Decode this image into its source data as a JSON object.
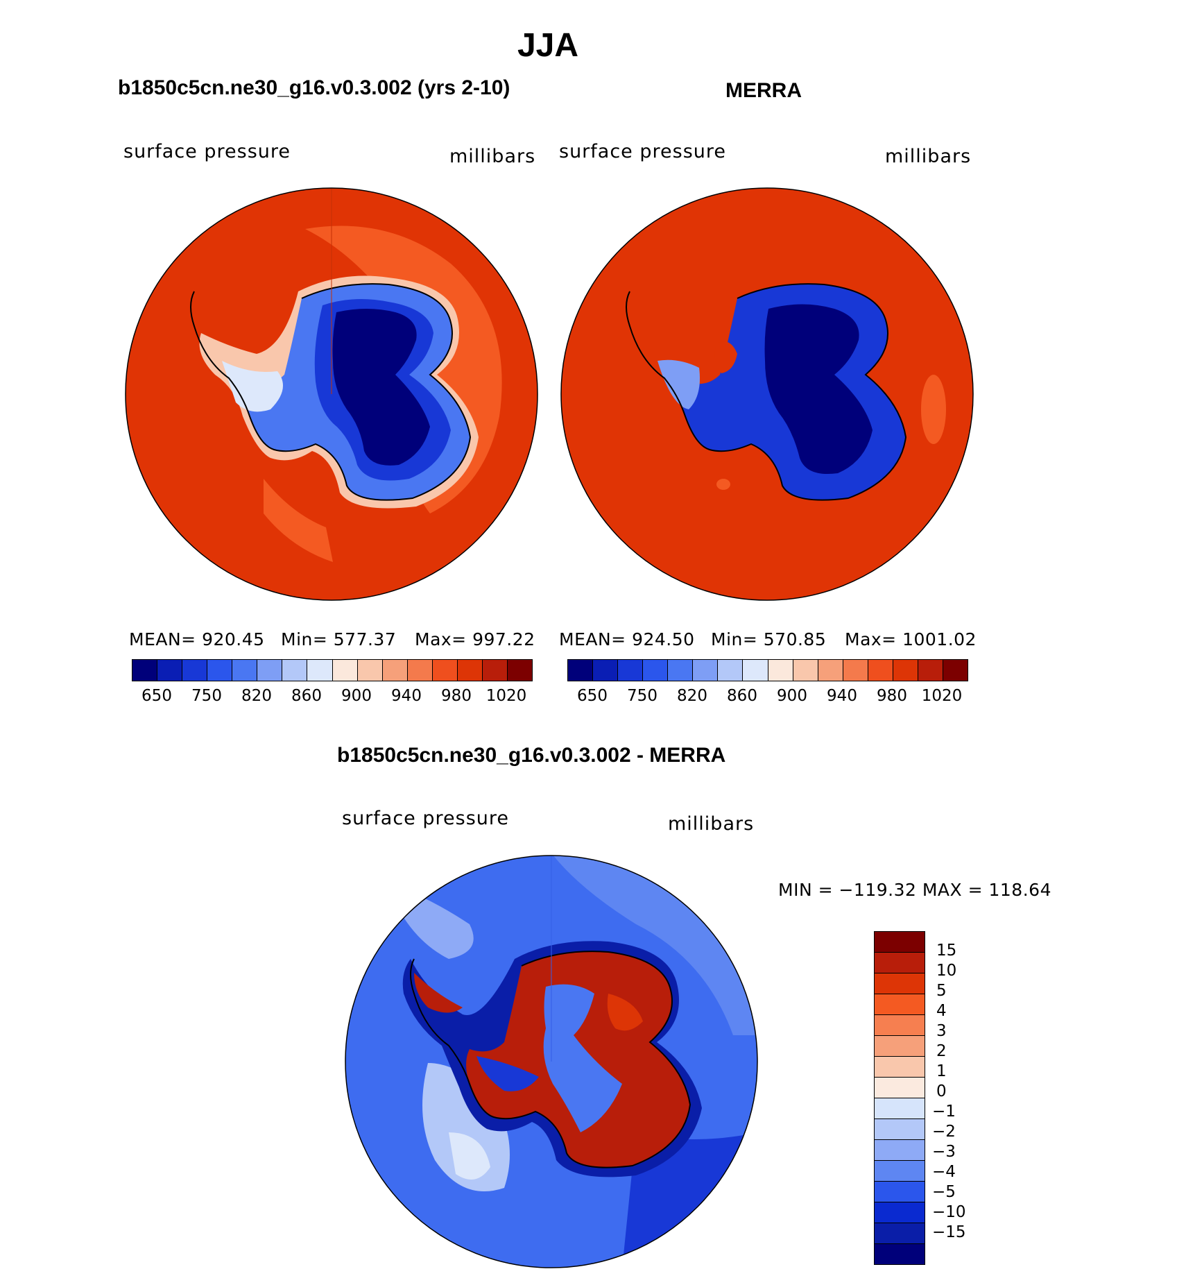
{
  "figure": {
    "title": "JJA"
  },
  "panels": [
    {
      "title": "b1850c5cn.ne30_g16.v0.3.002 (yrs 2-10)",
      "variable": "surface pressure",
      "units": "millibars",
      "stats": {
        "mean": "MEAN= 920.45",
        "min": "Min= 577.37",
        "max": "Max= 997.22"
      }
    },
    {
      "title": "MERRA",
      "variable": "surface pressure",
      "units": "millibars",
      "stats": {
        "mean": "MEAN= 924.50",
        "min": "Min= 570.85",
        "max": "Max= 1001.02"
      }
    },
    {
      "title": "b1850c5cn.ne30_g16.v0.3.002 - MERRA",
      "variable": "surface pressure",
      "units": "millibars",
      "stats": {
        "range": "MIN = −119.32 MAX = 118.64"
      }
    }
  ],
  "colorbar_abs": {
    "labels": [
      "650",
      "750",
      "820",
      "860",
      "900",
      "940",
      "980",
      "1020"
    ],
    "colors": [
      "#00007a",
      "#0a1eb4",
      "#1838d6",
      "#2b56ec",
      "#4a77f2",
      "#7e9ef5",
      "#b3c8f8",
      "#dde8fb",
      "#fbe8dc",
      "#f9c7ac",
      "#f6a07a",
      "#f47a4c",
      "#ef4f1e",
      "#dd3506",
      "#b81e0a",
      "#7c0000"
    ]
  },
  "colorbar_diff": {
    "labels": [
      "15",
      "10",
      "5",
      "4",
      "3",
      "2",
      "1",
      "0",
      "−1",
      "−2",
      "−3",
      "−4",
      "−5",
      "−10",
      "−15"
    ],
    "colors": [
      "#7c0000",
      "#b81e0a",
      "#dd3506",
      "#f45a22",
      "#f67f50",
      "#f6a07a",
      "#f9c7ac",
      "#fbeadf",
      "#d6e4fb",
      "#b3c8f8",
      "#8eaaf6",
      "#5e86f2",
      "#2b56ec",
      "#0a2ad0",
      "#0a1ea8",
      "#00007a"
    ]
  },
  "colors": {
    "ocean_abs": "#e03405",
    "ocean_abs_light": "#f45a22",
    "land_deep": "#00007a",
    "land_mid": "#1838d6",
    "land_light": "#4a77f2",
    "diff_ocean": "#3e6cf0",
    "diff_ocean_light": "#8eaaf6",
    "diff_red": "#b81e0a"
  }
}
